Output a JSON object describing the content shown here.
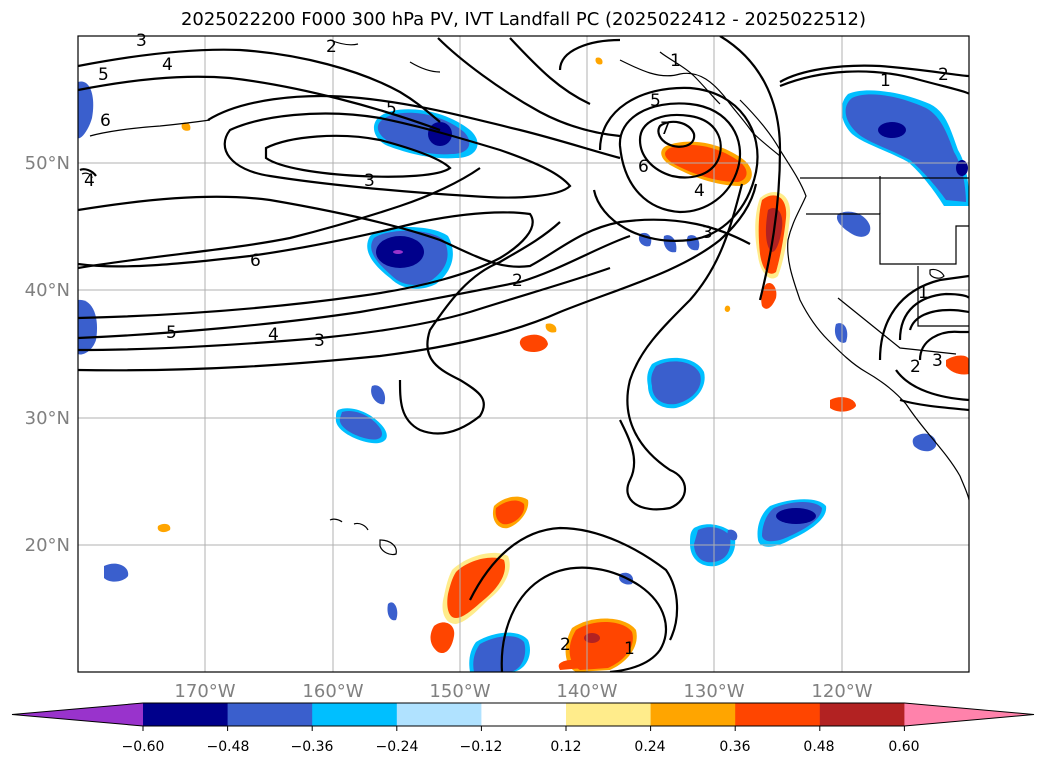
{
  "title": "2025022200 F000 300 hPa PV, IVT Landfall PC (2025022412 - 2025022512)",
  "map": {
    "lat_labels": [
      "50°N",
      "40°N",
      "30°N",
      "20°N"
    ],
    "lon_labels": [
      "170°W",
      "160°W",
      "150°W",
      "140°W",
      "130°W",
      "120°W"
    ],
    "grid": true,
    "contour_labels": [
      "3",
      "4",
      "5",
      "6",
      "3",
      "5",
      "1",
      "2",
      "5",
      "7",
      "6",
      "4",
      "3",
      "1",
      "2",
      "4",
      "6",
      "2",
      "5",
      "4",
      "3",
      "1",
      "3",
      "2",
      "2",
      "1"
    ]
  },
  "colorbar": {
    "levels": [
      "−0.60",
      "−0.48",
      "−0.36",
      "−0.24",
      "−0.12",
      "0.12",
      "0.24",
      "0.36",
      "0.48",
      "0.60"
    ],
    "colors": [
      "#9933cc",
      "#00008b",
      "#3a5fcd",
      "#00bfff",
      "#b0e2ff",
      "#ffffff",
      "#ffec8b",
      "#ffa500",
      "#ff4500",
      "#b22222",
      "#ff82ab"
    ],
    "extend": "both"
  },
  "colors": {
    "grid": "#b0b0b0",
    "contour": "#000000",
    "coast": "#000000"
  }
}
